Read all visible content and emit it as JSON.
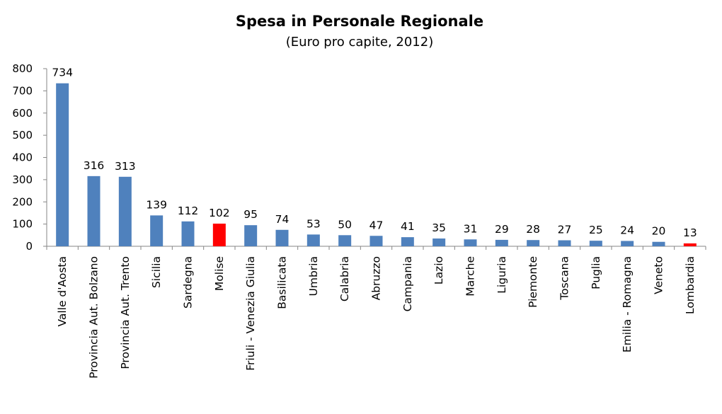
{
  "chart_data": {
    "type": "bar",
    "title": "Spesa in Personale Regionale",
    "subtitle": "(Euro pro capite, 2012)",
    "xlabel": "",
    "ylabel": "",
    "ylim": [
      0,
      800
    ],
    "yticks": [
      0,
      100,
      200,
      300,
      400,
      500,
      600,
      700,
      800
    ],
    "grid": false,
    "legend": "none",
    "categories": [
      "Valle d'Aosta",
      "Provincia Aut. Bolzano",
      "Provincia Aut. Trento",
      "Sicilia",
      "Sardegna",
      "Molise",
      "Friuli - Venezia Giulia",
      "Basilicata",
      "Umbria",
      "Calabria",
      "Abruzzo",
      "Campania",
      "Lazio",
      "Marche",
      "Liguria",
      "Piemonte",
      "Toscana",
      "Puglia",
      "Emilia - Romagna",
      "Veneto",
      "Lombardia"
    ],
    "values": [
      734,
      316,
      313,
      139,
      112,
      102,
      95,
      74,
      53,
      50,
      47,
      41,
      35,
      31,
      29,
      28,
      27,
      25,
      24,
      20,
      13
    ],
    "data_labels": [
      "734",
      "316",
      "313",
      "139",
      "112",
      "102",
      "95",
      "74",
      "53",
      "50",
      "47",
      "41",
      "35",
      "31",
      "29",
      "28",
      "27",
      "25",
      "24",
      "20",
      "13"
    ],
    "colors": {
      "default": "#4F81BD",
      "highlight": "#FF0000",
      "axis": "#868686"
    },
    "highlighted": [
      "Molise",
      "Lombardia"
    ]
  }
}
